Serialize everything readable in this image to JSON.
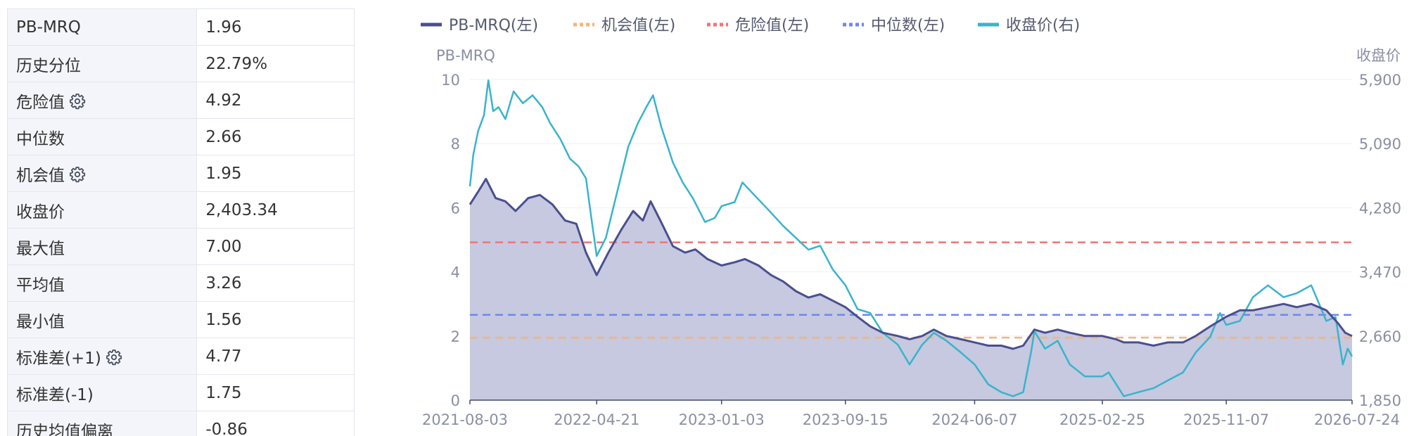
{
  "stats": {
    "rows": [
      {
        "label": "PB-MRQ",
        "value": "1.96",
        "gear": false
      },
      {
        "label": "历史分位",
        "value": "22.79%",
        "gear": false
      },
      {
        "label": "危险值",
        "value": "4.92",
        "gear": true
      },
      {
        "label": "中位数",
        "value": "2.66",
        "gear": false
      },
      {
        "label": "机会值",
        "value": "1.95",
        "gear": true
      },
      {
        "label": "收盘价",
        "value": "2,403.34",
        "gear": false
      },
      {
        "label": "最大值",
        "value": "7.00",
        "gear": false
      },
      {
        "label": "平均值",
        "value": "3.26",
        "gear": false
      },
      {
        "label": "最小值",
        "value": "1.56",
        "gear": false
      },
      {
        "label": "标准差(+1)",
        "value": "4.77",
        "gear": true
      },
      {
        "label": "标准差(-1)",
        "value": "1.75",
        "gear": false
      },
      {
        "label": "历史均值偏离",
        "value": "-0.86",
        "gear": false
      }
    ]
  },
  "chart_data": {
    "type": "line",
    "legend": [
      {
        "name": "PB-MRQ(左)",
        "color": "#4a4f8f",
        "style": "solid"
      },
      {
        "name": "机会值(左)",
        "color": "#f5b47a",
        "style": "dotted"
      },
      {
        "name": "危险值(左)",
        "color": "#f07575",
        "style": "dotted"
      },
      {
        "name": "中位数(左)",
        "color": "#6f86f0",
        "style": "dotted"
      },
      {
        "name": "收盘价(右)",
        "color": "#3ab3cc",
        "style": "solid"
      }
    ],
    "legend_position": "top",
    "y_left": {
      "label": "PB-MRQ",
      "min": 0,
      "max": 10,
      "ticks": [
        "10",
        "8",
        "6",
        "4",
        "2",
        "0"
      ]
    },
    "y_right": {
      "label": "收盘价",
      "min": 1850,
      "max": 5900,
      "ticks": [
        "5,900",
        "5,090",
        "4,280",
        "3,470",
        "2,660",
        "1,850"
      ]
    },
    "x_ticks": [
      "2021-08-03",
      "2022-04-21",
      "2023-01-03",
      "2023-09-15",
      "2024-06-07",
      "2025-02-25",
      "2025-11-07",
      "2026-07-24"
    ],
    "x_range": [
      "2021-08-03",
      "2026-07-24"
    ],
    "grid": true,
    "reference_lines": [
      {
        "name": "危险值(左)",
        "value": 4.92
      },
      {
        "name": "中位数(左)",
        "value": 2.66
      },
      {
        "name": "机会值(左)",
        "value": 1.95
      }
    ],
    "series": [
      {
        "name": "PB-MRQ(左)",
        "axis": "left",
        "points": [
          [
            "2021-08-03",
            6.1
          ],
          [
            "2021-08-20",
            6.5
          ],
          [
            "2021-09-05",
            6.9
          ],
          [
            "2021-09-25",
            6.3
          ],
          [
            "2021-10-15",
            6.2
          ],
          [
            "2021-11-05",
            5.9
          ],
          [
            "2021-12-01",
            6.3
          ],
          [
            "2021-12-25",
            6.4
          ],
          [
            "2022-01-20",
            6.1
          ],
          [
            "2022-02-15",
            5.6
          ],
          [
            "2022-03-10",
            5.5
          ],
          [
            "2022-03-30",
            4.6
          ],
          [
            "2022-04-21",
            3.9
          ],
          [
            "2022-05-15",
            4.6
          ],
          [
            "2022-06-10",
            5.3
          ],
          [
            "2022-07-05",
            5.9
          ],
          [
            "2022-07-25",
            5.6
          ],
          [
            "2022-08-10",
            6.2
          ],
          [
            "2022-08-30",
            5.6
          ],
          [
            "2022-09-25",
            4.8
          ],
          [
            "2022-10-20",
            4.6
          ],
          [
            "2022-11-10",
            4.7
          ],
          [
            "2022-12-05",
            4.4
          ],
          [
            "2023-01-03",
            4.2
          ],
          [
            "2023-01-30",
            4.3
          ],
          [
            "2023-02-20",
            4.4
          ],
          [
            "2023-03-20",
            4.2
          ],
          [
            "2023-04-15",
            3.9
          ],
          [
            "2023-05-10",
            3.7
          ],
          [
            "2023-06-05",
            3.4
          ],
          [
            "2023-07-01",
            3.2
          ],
          [
            "2023-07-25",
            3.3
          ],
          [
            "2023-08-20",
            3.1
          ],
          [
            "2023-09-15",
            2.9
          ],
          [
            "2023-10-10",
            2.6
          ],
          [
            "2023-11-05",
            2.3
          ],
          [
            "2023-12-01",
            2.1
          ],
          [
            "2024-01-01",
            2.0
          ],
          [
            "2024-01-25",
            1.9
          ],
          [
            "2024-02-20",
            2.0
          ],
          [
            "2024-03-15",
            2.2
          ],
          [
            "2024-04-10",
            2.0
          ],
          [
            "2024-05-10",
            1.9
          ],
          [
            "2024-06-07",
            1.8
          ],
          [
            "2024-07-05",
            1.7
          ],
          [
            "2024-08-01",
            1.7
          ],
          [
            "2024-08-25",
            1.6
          ],
          [
            "2024-09-15",
            1.7
          ],
          [
            "2024-10-08",
            2.2
          ],
          [
            "2024-10-30",
            2.1
          ],
          [
            "2024-11-25",
            2.2
          ],
          [
            "2024-12-20",
            2.1
          ],
          [
            "2025-01-20",
            2.0
          ],
          [
            "2025-02-25",
            2.0
          ],
          [
            "2025-03-25",
            1.9
          ],
          [
            "2025-04-10",
            1.8
          ],
          [
            "2025-05-10",
            1.8
          ],
          [
            "2025-06-10",
            1.7
          ],
          [
            "2025-07-10",
            1.8
          ],
          [
            "2025-08-10",
            1.8
          ],
          [
            "2025-09-05",
            2.0
          ],
          [
            "2025-10-05",
            2.3
          ],
          [
            "2025-11-07",
            2.6
          ],
          [
            "2025-12-05",
            2.8
          ],
          [
            "2026-01-01",
            2.8
          ],
          [
            "2026-02-01",
            2.9
          ],
          [
            "2026-03-05",
            3.0
          ],
          [
            "2026-04-01",
            2.9
          ],
          [
            "2026-05-01",
            3.0
          ],
          [
            "2026-06-01",
            2.8
          ],
          [
            "2026-06-25",
            2.4
          ],
          [
            "2026-07-10",
            2.1
          ],
          [
            "2026-07-24",
            2.0
          ]
        ]
      },
      {
        "name": "收盘价(右)",
        "axis": "right",
        "points": [
          [
            "2021-08-03",
            4550
          ],
          [
            "2021-08-10",
            4950
          ],
          [
            "2021-08-20",
            5250
          ],
          [
            "2021-09-01",
            5450
          ],
          [
            "2021-09-10",
            5890
          ],
          [
            "2021-09-20",
            5500
          ],
          [
            "2021-10-01",
            5550
          ],
          [
            "2021-10-15",
            5400
          ],
          [
            "2021-11-01",
            5750
          ],
          [
            "2021-11-20",
            5600
          ],
          [
            "2021-12-10",
            5700
          ],
          [
            "2021-12-30",
            5550
          ],
          [
            "2022-01-15",
            5350
          ],
          [
            "2022-02-05",
            5150
          ],
          [
            "2022-02-25",
            4900
          ],
          [
            "2022-03-15",
            4800
          ],
          [
            "2022-03-30",
            4650
          ],
          [
            "2022-04-10",
            4150
          ],
          [
            "2022-04-21",
            3670
          ],
          [
            "2022-05-10",
            3900
          ],
          [
            "2022-06-01",
            4450
          ],
          [
            "2022-06-25",
            5050
          ],
          [
            "2022-07-15",
            5350
          ],
          [
            "2022-08-01",
            5550
          ],
          [
            "2022-08-15",
            5700
          ],
          [
            "2022-09-01",
            5300
          ],
          [
            "2022-09-25",
            4850
          ],
          [
            "2022-10-15",
            4600
          ],
          [
            "2022-11-05",
            4400
          ],
          [
            "2022-11-30",
            4100
          ],
          [
            "2022-12-20",
            4150
          ],
          [
            "2023-01-03",
            4300
          ],
          [
            "2023-01-30",
            4350
          ],
          [
            "2023-02-15",
            4600
          ],
          [
            "2023-03-10",
            4450
          ],
          [
            "2023-04-10",
            4250
          ],
          [
            "2023-05-10",
            4050
          ],
          [
            "2023-06-05",
            3900
          ],
          [
            "2023-07-01",
            3750
          ],
          [
            "2023-07-25",
            3800
          ],
          [
            "2023-08-20",
            3500
          ],
          [
            "2023-09-15",
            3300
          ],
          [
            "2023-10-10",
            3000
          ],
          [
            "2023-11-05",
            2950
          ],
          [
            "2023-12-01",
            2700
          ],
          [
            "2024-01-01",
            2550
          ],
          [
            "2024-01-25",
            2300
          ],
          [
            "2024-02-20",
            2550
          ],
          [
            "2024-03-15",
            2700
          ],
          [
            "2024-04-10",
            2600
          ],
          [
            "2024-05-10",
            2450
          ],
          [
            "2024-06-07",
            2300
          ],
          [
            "2024-07-05",
            2050
          ],
          [
            "2024-08-01",
            1950
          ],
          [
            "2024-08-25",
            1900
          ],
          [
            "2024-09-15",
            1950
          ],
          [
            "2024-10-01",
            2450
          ],
          [
            "2024-10-08",
            2720
          ],
          [
            "2024-10-30",
            2500
          ],
          [
            "2024-11-25",
            2600
          ],
          [
            "2024-12-20",
            2300
          ],
          [
            "2025-01-20",
            2150
          ],
          [
            "2025-02-25",
            2150
          ],
          [
            "2025-03-10",
            2200
          ],
          [
            "2025-04-10",
            1900
          ],
          [
            "2025-05-10",
            1950
          ],
          [
            "2025-06-10",
            2000
          ],
          [
            "2025-07-10",
            2100
          ],
          [
            "2025-08-10",
            2200
          ],
          [
            "2025-09-05",
            2450
          ],
          [
            "2025-10-05",
            2650
          ],
          [
            "2025-10-25",
            2950
          ],
          [
            "2025-11-07",
            2800
          ],
          [
            "2025-12-05",
            2850
          ],
          [
            "2026-01-01",
            3150
          ],
          [
            "2026-02-01",
            3300
          ],
          [
            "2026-03-05",
            3150
          ],
          [
            "2026-04-01",
            3200
          ],
          [
            "2026-05-01",
            3300
          ],
          [
            "2026-06-01",
            2850
          ],
          [
            "2026-06-20",
            2900
          ],
          [
            "2026-07-05",
            2300
          ],
          [
            "2026-07-15",
            2500
          ],
          [
            "2026-07-24",
            2403
          ]
        ]
      }
    ]
  }
}
